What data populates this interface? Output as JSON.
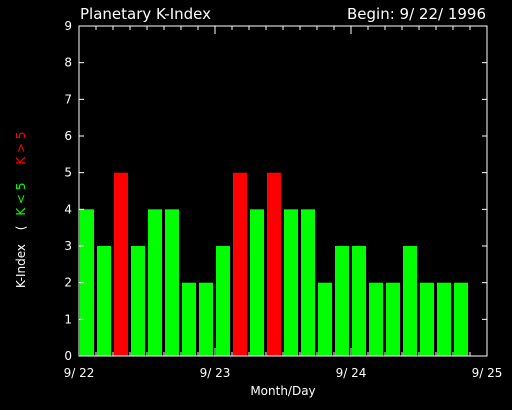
{
  "chart_data": {
    "type": "bar",
    "title": "Planetary K-Index",
    "begin_label": "Begin: 9/ 22/ 1996",
    "xlabel": "Month/Day",
    "ylabel_prefix": "K-Index",
    "ylabel_open": "(",
    "ylabel_low": "K < 5",
    "ylabel_high": "K > 5",
    "ylim": [
      0,
      9
    ],
    "yticks": [
      "0",
      "1",
      "2",
      "3",
      "4",
      "5",
      "6",
      "7",
      "8",
      "9"
    ],
    "xticks": [
      "9/ 22",
      "9/ 23",
      "9/ 24",
      "9/ 25"
    ],
    "values": [
      4,
      3,
      5,
      3,
      4,
      4,
      2,
      2,
      3,
      5,
      4,
      5,
      4,
      4,
      2,
      3,
      3,
      2,
      2,
      3,
      2,
      2,
      2
    ],
    "threshold": 5,
    "colors": {
      "background": "#000000",
      "axes": "#ffffff",
      "low": "#00ff00",
      "high": "#ff0000"
    }
  }
}
